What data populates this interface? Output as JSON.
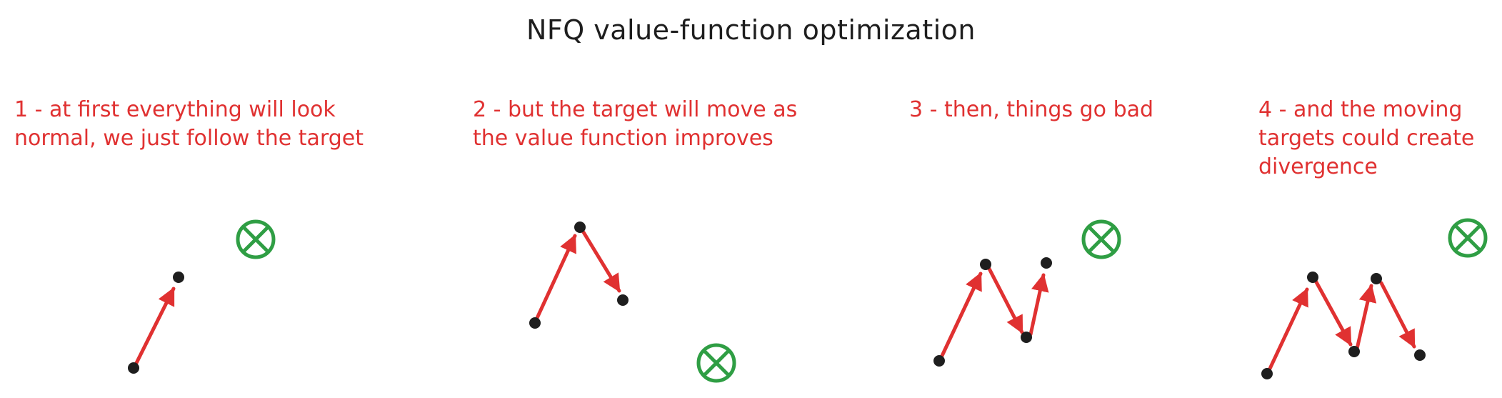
{
  "title": "NFQ value-function optimization",
  "panels": [
    {
      "caption": "1 - at first everything will look\nnormal, we just follow the target"
    },
    {
      "caption": "2 - but the target will move as\nthe value function improves"
    },
    {
      "caption": "3 - then, things go bad"
    },
    {
      "caption": "4 - and the moving\ntargets could create\ndivergence"
    }
  ],
  "colors": {
    "title": "#1e1e1e",
    "caption": "#e03131",
    "arrow": "#e03131",
    "point": "#1e1e1e",
    "target": "#2f9e44"
  },
  "icons": {
    "target": "circle-x-target-icon",
    "point": "dot-icon"
  }
}
